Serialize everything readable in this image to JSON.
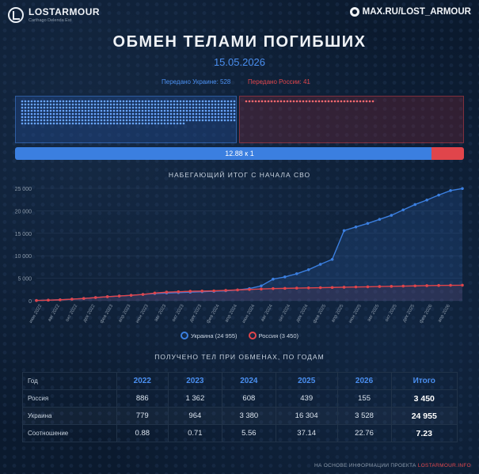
{
  "brand": {
    "name": "LOSTARMOUR",
    "tagline": "Carthago Delenda Est",
    "handle": "MAX.RU/LOST_ARMOUR"
  },
  "title": "ОБМЕН ТЕЛАМИ ПОГИБШИХ",
  "date": "15.05.2026",
  "transfer": {
    "ukraine_label": "Передано Украине: 528",
    "russia_label": "Передано России: 41",
    "ukraine_count": 528,
    "russia_count": 41,
    "ratio_label": "12.88 к 1",
    "ukraine_share": 0.928,
    "ukraine_color": "#4a8ff0",
    "russia_color": "#e0454b"
  },
  "cumulative_title": "НАБЕГАЮЩИЙ ИТОГ С НАЧАЛА СВО",
  "chart_data": {
    "type": "line",
    "ylim": [
      0,
      25000
    ],
    "yticks": [
      0,
      5000,
      10000,
      15000,
      20000,
      25000
    ],
    "ytick_labels": [
      "0",
      "5 000",
      "10 000",
      "15 000",
      "20 000",
      "25 000"
    ],
    "x_tick_labels": [
      "июн 2022",
      "авг 2022",
      "окт 2022",
      "дек 2022",
      "фев 2023",
      "апр 2023",
      "июн 2023",
      "авг 2023",
      "окт 2023",
      "дек 2023",
      "фев 2024",
      "апр 2024",
      "июн 2024",
      "авг 2024",
      "окт 2024",
      "дек 2024",
      "фев 2025",
      "апр 2025",
      "июн 2025",
      "авг 2025",
      "окт 2025",
      "дек 2025",
      "фев 2026",
      "апр 2026"
    ],
    "series": [
      {
        "name": "Украина (24 955)",
        "color": "#3b7fe0",
        "values": [
          50,
          120,
          200,
          350,
          500,
          700,
          900,
          1050,
          1200,
          1400,
          1600,
          1700,
          1800,
          1900,
          2000,
          2100,
          2200,
          2400,
          2700,
          3300,
          4800,
          5300,
          6000,
          6900,
          8100,
          9200,
          15600,
          16400,
          17200,
          18100,
          19000,
          20200,
          21400,
          22400,
          23500,
          24500,
          24955
        ]
      },
      {
        "name": "Россия (3 450)",
        "color": "#e0454b",
        "values": [
          50,
          120,
          200,
          350,
          500,
          700,
          900,
          1050,
          1200,
          1400,
          1700,
          1900,
          2000,
          2100,
          2150,
          2200,
          2300,
          2400,
          2500,
          2600,
          2700,
          2750,
          2800,
          2850,
          2900,
          2950,
          3000,
          3050,
          3100,
          3150,
          3200,
          3250,
          3300,
          3350,
          3400,
          3430,
          3450
        ]
      }
    ],
    "legend_placement": "bottom-center",
    "grid": true
  },
  "yearly": {
    "title": "ПОЛУЧЕНО ТЕЛ ПРИ ОБМЕНАХ, ПО ГОДАМ",
    "columns": [
      "Год",
      "2022",
      "2023",
      "2024",
      "2025",
      "2026",
      "Итого"
    ],
    "rows": [
      [
        "Россия",
        "886",
        "1 362",
        "608",
        "439",
        "155",
        "3 450"
      ],
      [
        "Украина",
        "779",
        "964",
        "3 380",
        "16 304",
        "3 528",
        "24 955"
      ],
      [
        "Соотношение",
        "0.88",
        "0.71",
        "5.56",
        "37.14",
        "22.76",
        "7.23"
      ]
    ]
  },
  "source": {
    "prefix": "НА ОСНОВЕ ИНФОРМАЦИИ ПРОЕКТА",
    "link": "LOSTARMOUR.INFO"
  }
}
